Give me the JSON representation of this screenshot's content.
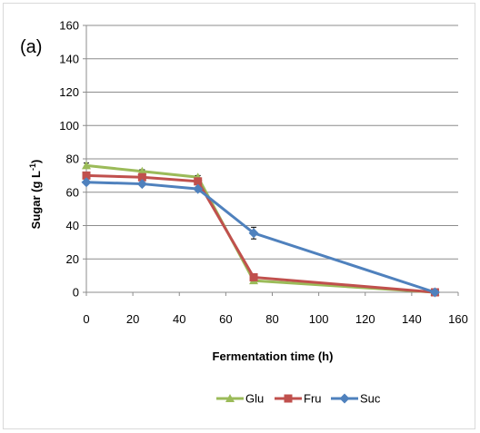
{
  "panel_label": "(a)",
  "chart_data": {
    "type": "line",
    "xlabel": "Fermentation time (h)",
    "ylabel": "Sugar (g L",
    "ylabel_superscript": "-1",
    "ylabel_suffix": ")",
    "xlim": [
      0,
      160
    ],
    "ylim": [
      0,
      160
    ],
    "xticks": [
      0,
      20,
      40,
      60,
      80,
      100,
      120,
      140,
      160
    ],
    "yticks": [
      0,
      20,
      40,
      60,
      80,
      100,
      120,
      140,
      160
    ],
    "grid": "horizontal",
    "legend_position": "bottom",
    "series": [
      {
        "name": "Glu",
        "color": "#9bbb59",
        "marker": "triangle",
        "points": [
          {
            "x": 0,
            "y": 76,
            "err": 1.5
          },
          {
            "x": 24,
            "y": 72.5,
            "err": 1
          },
          {
            "x": 48,
            "y": 69,
            "err": 1
          },
          {
            "x": 72,
            "y": 7,
            "err": 1
          },
          {
            "x": 150,
            "y": 0,
            "err": 0.5
          }
        ]
      },
      {
        "name": "Fru",
        "color": "#c0504d",
        "marker": "square",
        "points": [
          {
            "x": 0,
            "y": 70,
            "err": 1.5
          },
          {
            "x": 24,
            "y": 69,
            "err": 1
          },
          {
            "x": 48,
            "y": 66.5,
            "err": 1.5
          },
          {
            "x": 72,
            "y": 9,
            "err": 1
          },
          {
            "x": 150,
            "y": 0,
            "err": 0.5
          }
        ]
      },
      {
        "name": "Suc",
        "color": "#4f81bd",
        "marker": "diamond",
        "points": [
          {
            "x": 0,
            "y": 66,
            "err": 1
          },
          {
            "x": 24,
            "y": 65,
            "err": 1
          },
          {
            "x": 48,
            "y": 62,
            "err": 1
          },
          {
            "x": 72,
            "y": 35.5,
            "err": 3.5
          },
          {
            "x": 150,
            "y": 0,
            "err": 0.5
          }
        ]
      }
    ]
  }
}
